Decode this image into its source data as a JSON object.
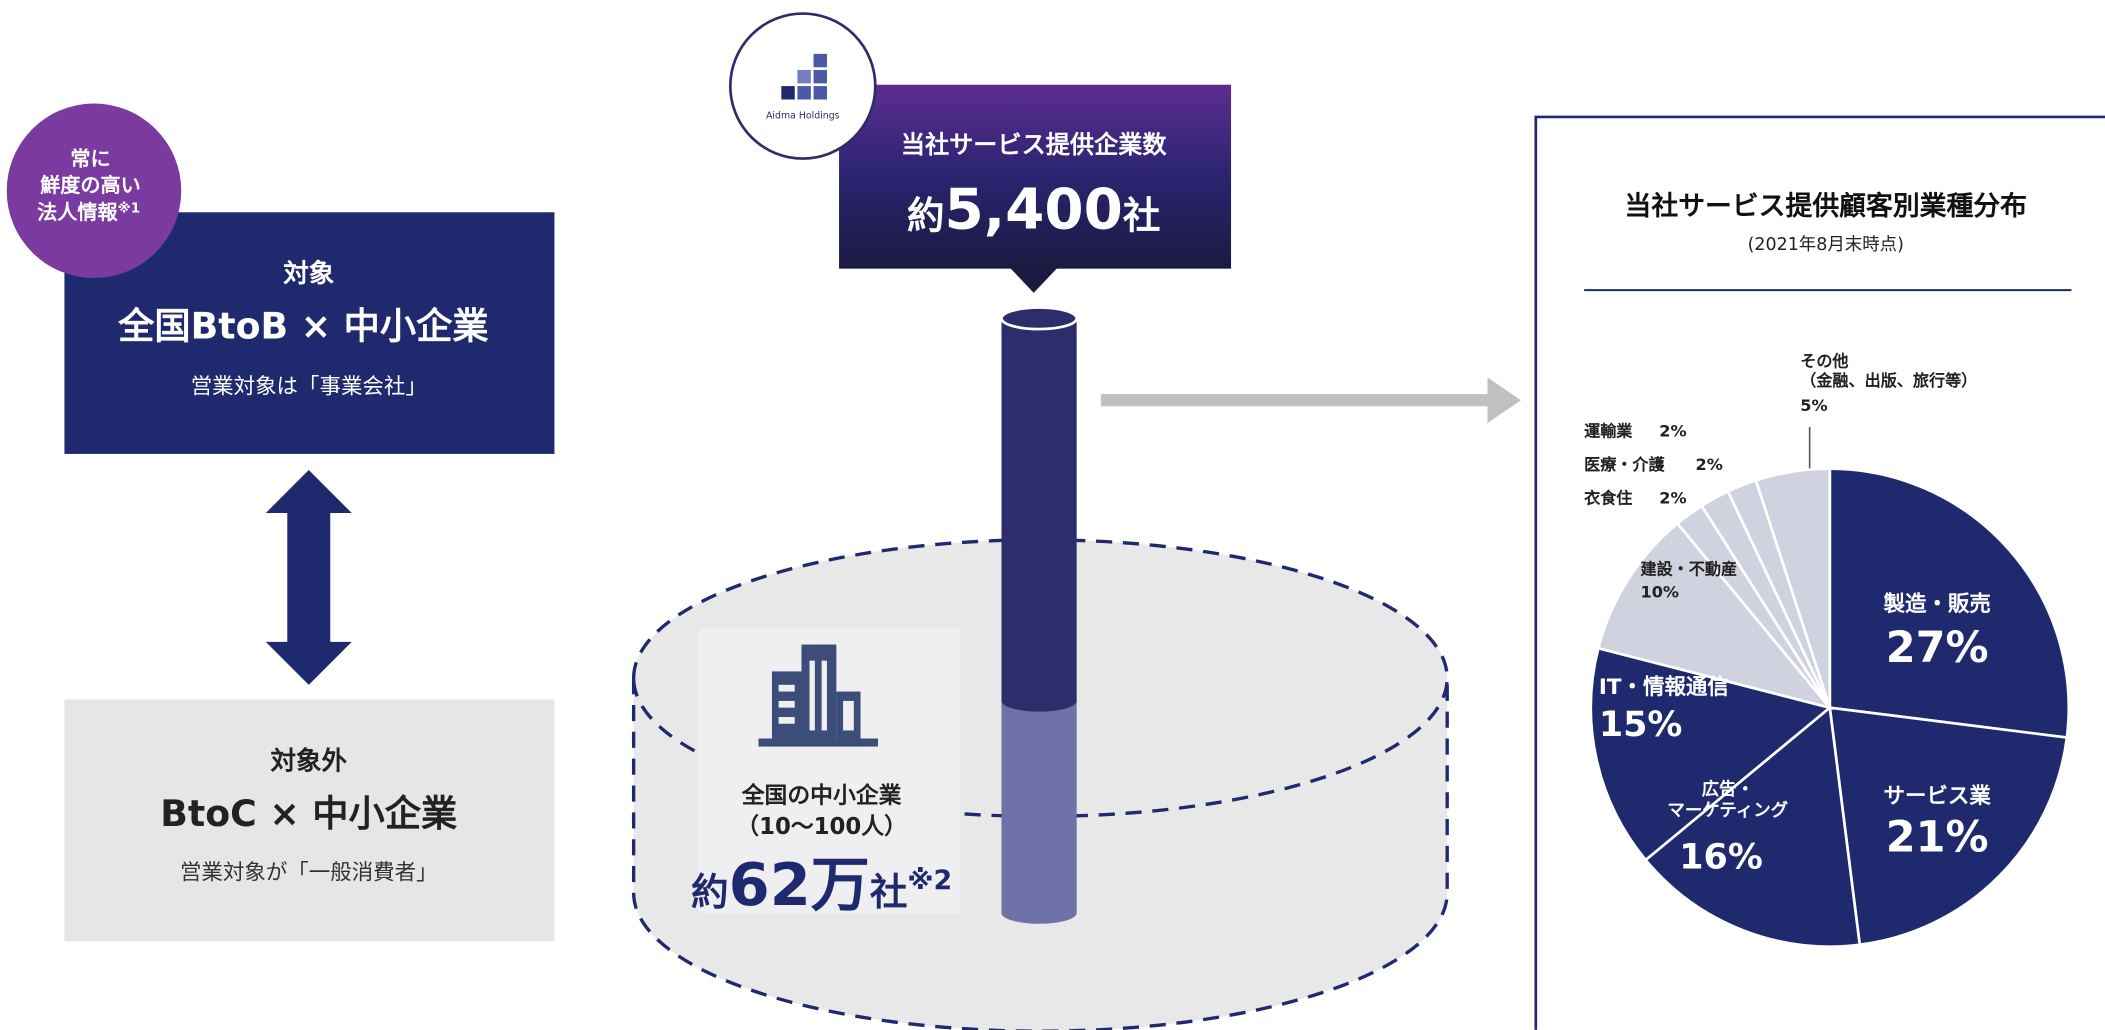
{
  "badge": {
    "lines": [
      "常に",
      "鮮度の高い",
      "法人情報"
    ],
    "note": "※1"
  },
  "target": {
    "label": "対象",
    "title": "全国BtoB × 中小企業",
    "note": "営業対象は「事業会社」"
  },
  "non_target": {
    "label": "対象外",
    "title": "BtoC × 中小企業",
    "note": "営業対象が「一般消費者」"
  },
  "service": {
    "logo": "Aidma Holdings",
    "label": "当社サービス提供企業数",
    "prefix": "約",
    "count": "5,400",
    "unit": "社"
  },
  "sme": {
    "label": "全国の中小企業",
    "range": "（10〜100人）",
    "prefix": "約",
    "count": "62万",
    "unit": "社",
    "note": "※2"
  },
  "chart_data": {
    "type": "pie",
    "title": "当社サービス提供顧客別業種分布",
    "subtitle": "(2021年8月末時点)",
    "categories": [
      "製造・販売",
      "サービス業",
      "広告・\nマーケティング",
      "IT・情報通信",
      "建設・不動産",
      "衣食住",
      "医療・介護",
      "運輸業",
      "その他\n（金融、出版、旅行等）"
    ],
    "values": [
      27,
      21,
      16,
      15,
      10,
      2,
      2,
      2,
      5
    ],
    "value_labels": [
      "27%",
      "21%",
      "16%",
      "15%",
      "10%",
      "2%",
      "2%",
      "2%",
      "5%"
    ],
    "colors": [
      "#1f2a6e",
      "#1f2a6e",
      "#1f2a6e",
      "#1f2a6e",
      "#d0d2e0",
      "#d0d2e0",
      "#d0d2e0",
      "#d0d2e0",
      "#d0d2e0"
    ]
  }
}
